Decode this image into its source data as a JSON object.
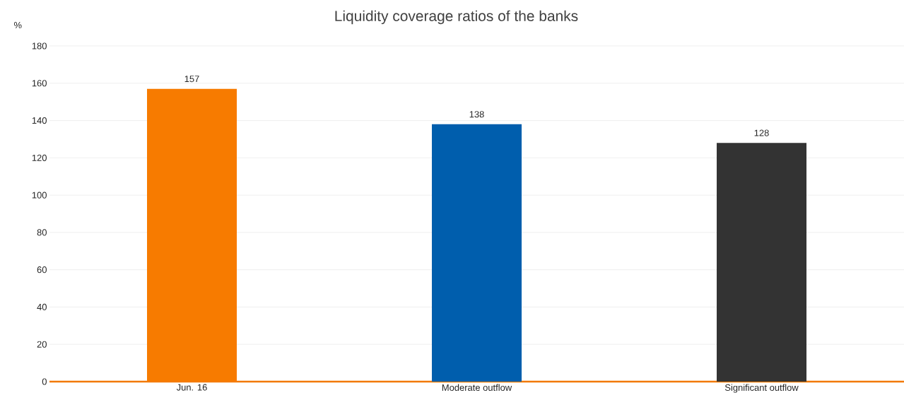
{
  "chart_data": {
    "type": "bar",
    "title": "Liquidity coverage ratios of the banks",
    "ylabel": "%",
    "categories": [
      "Jun. 16",
      "Moderate outflow",
      "Significant outflow"
    ],
    "values": [
      157,
      138,
      128
    ],
    "colors": [
      "#f77b00",
      "#005ead",
      "#333333"
    ],
    "ylim": [
      0,
      180
    ],
    "yticks": [
      0,
      20,
      40,
      60,
      80,
      100,
      120,
      140,
      160,
      180
    ],
    "grid": "y",
    "data_labels": true
  }
}
